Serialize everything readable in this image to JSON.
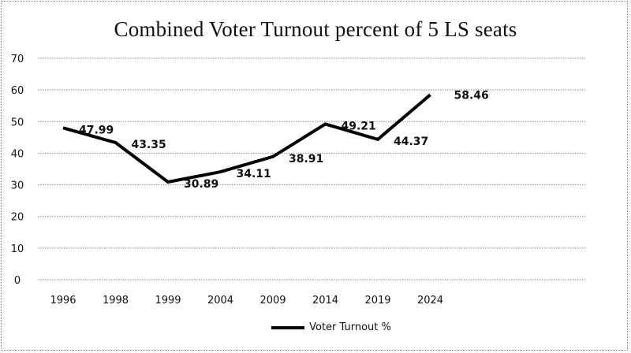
{
  "chart_data": {
    "type": "line",
    "title": "Combined Voter Turnout percent of 5 LS seats",
    "xlabel": "",
    "ylabel": "",
    "categories": [
      "1996",
      "1998",
      "1999",
      "2004",
      "2009",
      "2014",
      "2019",
      "2024"
    ],
    "series": [
      {
        "name": "Voter Turnout %",
        "values": [
          47.99,
          43.35,
          30.89,
          34.11,
          38.91,
          49.21,
          44.37,
          58.46
        ],
        "data_labels": [
          "47.99",
          "43.35",
          "30.89",
          "34.11",
          "38.91",
          "49.21",
          "44.37",
          "58.46"
        ],
        "color": "#000000"
      }
    ],
    "ylim": [
      0,
      70
    ],
    "yticks": [
      0,
      10,
      20,
      30,
      40,
      50,
      60,
      70
    ],
    "ytick_labels": [
      "0",
      "10",
      "20",
      "30",
      "40",
      "50",
      "60",
      "70"
    ],
    "grid": true,
    "grid_color": "#9a9a9a",
    "legend": {
      "position": "bottom",
      "entries": [
        "Voter Turnout %"
      ]
    }
  }
}
